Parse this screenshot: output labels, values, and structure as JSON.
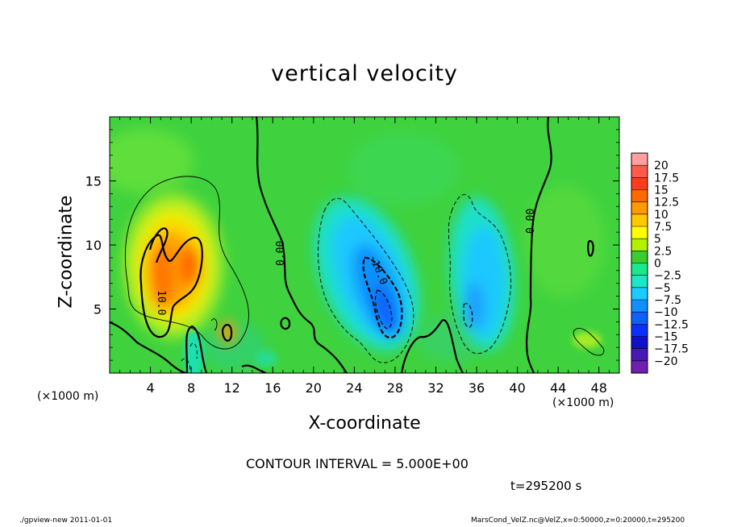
{
  "chart_data": {
    "type": "heatmap",
    "title": "vertical velocity",
    "xlabel": "X-coordinate",
    "ylabel": "Z-coordinate",
    "x_unit_left": "(×1000 m)",
    "x_unit_right": "(×1000 m)",
    "xlim": [
      0,
      50
    ],
    "ylim": [
      0,
      20
    ],
    "x_ticks": [
      "4",
      "8",
      "12",
      "16",
      "20",
      "24",
      "28",
      "32",
      "36",
      "40",
      "44",
      "48"
    ],
    "x_tick_values": [
      4,
      8,
      12,
      16,
      20,
      24,
      28,
      32,
      36,
      40,
      44,
      48
    ],
    "y_ticks": [
      "5",
      "10",
      "15"
    ],
    "y_tick_values": [
      5,
      10,
      15
    ],
    "colorbar_labels": [
      "20",
      "17.5",
      "15",
      "12.5",
      "10",
      "7.5",
      "5",
      "2.5",
      "0",
      "−2.5",
      "−5",
      "−7.5",
      "−10",
      "−12.5",
      "−15",
      "−17.5",
      "−20"
    ],
    "colorbar_colors": [
      "#ffa0a0",
      "#ff5a4a",
      "#ff3d1a",
      "#ff6a00",
      "#ff9a00",
      "#ffc800",
      "#ffff00",
      "#b4f000",
      "#3ccc2c",
      "#19e88c",
      "#1ce8c8",
      "#1ccaff",
      "#1090ff",
      "#1060ff",
      "#0a30ff",
      "#1010c8",
      "#4818b4",
      "#7020b0"
    ],
    "contour_interval_text": "CONTOUR INTERVAL = 5.000E+00",
    "contour_labels": [
      "10.0",
      "0.00",
      "-10.0",
      "0.00"
    ],
    "features": [
      {
        "x": 6.5,
        "z": 6.5,
        "w": 10,
        "kind": "updraft"
      },
      {
        "x": 26.5,
        "z": 6,
        "w": -12,
        "kind": "downdraft"
      },
      {
        "x": 36.5,
        "z": 6,
        "w": -8,
        "kind": "downdraft"
      }
    ]
  },
  "time_label": "t=295200 s",
  "footer_left": "./gpview-new   2011-01-01",
  "footer_right": "MarsCond_VelZ.nc@VelZ,x=0:50000,z=0:20000,t=295200"
}
